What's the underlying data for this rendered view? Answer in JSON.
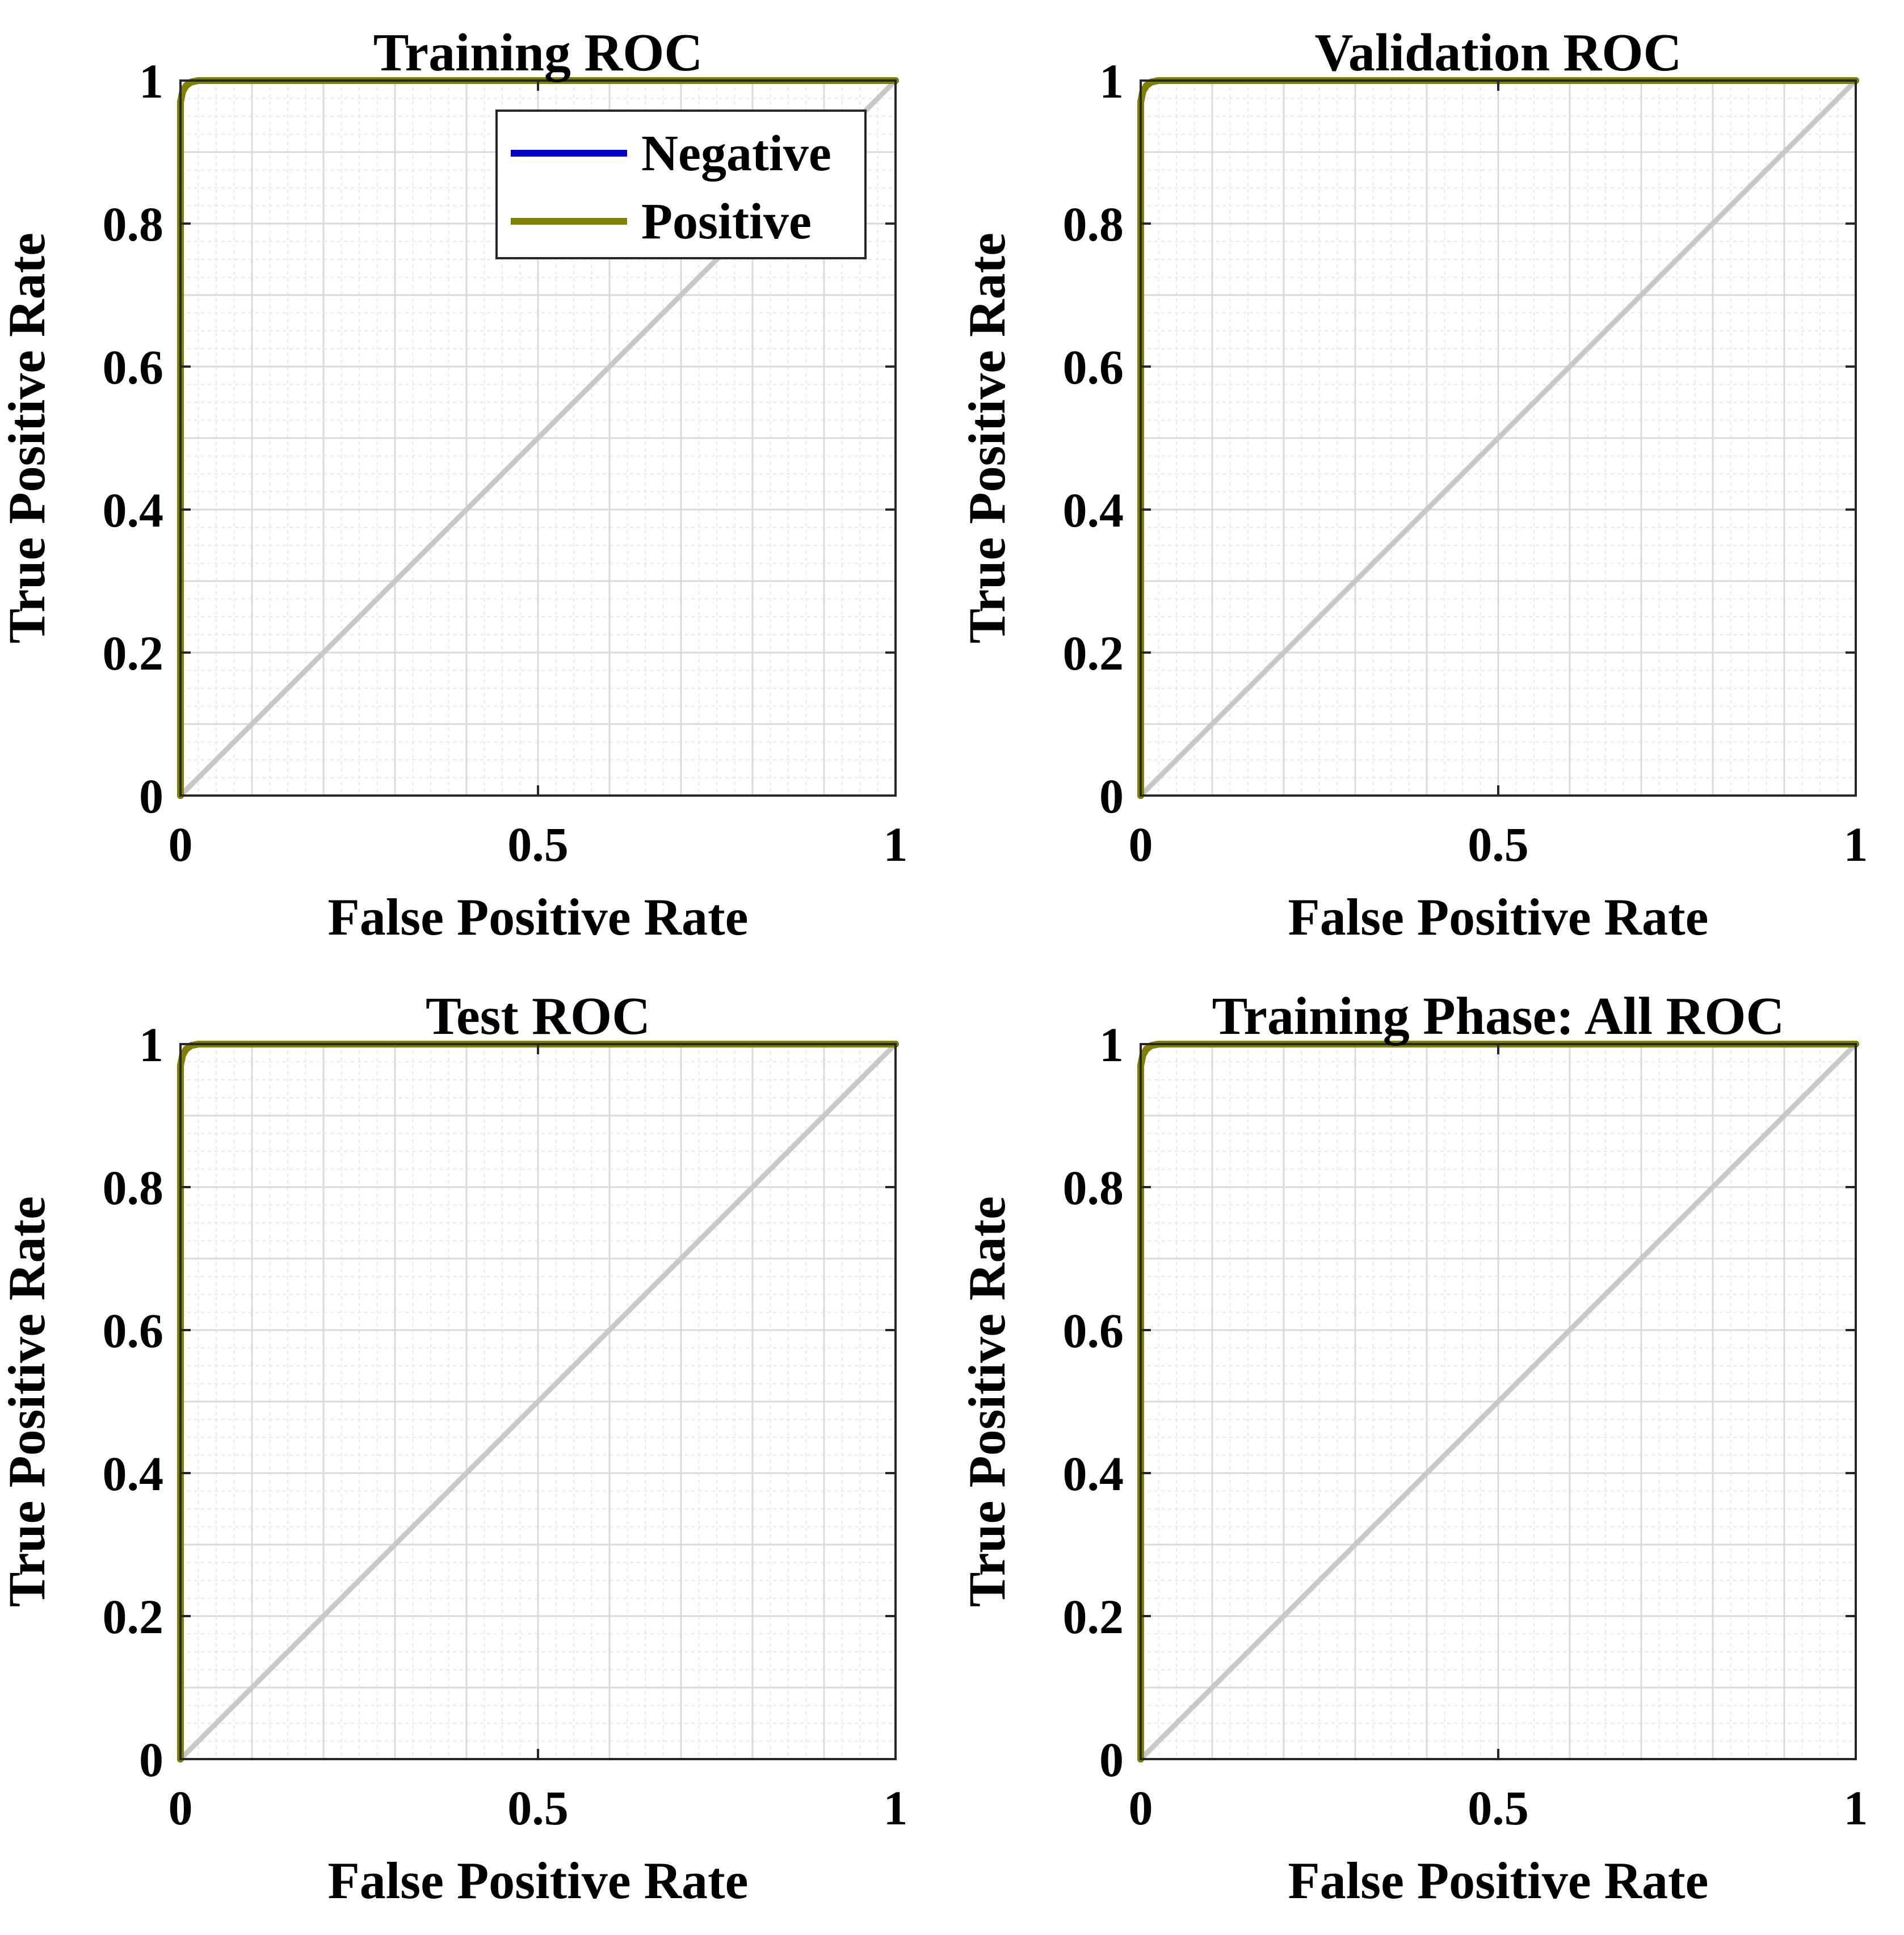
{
  "chart_data": [
    {
      "type": "line",
      "title": "Training ROC",
      "xlabel": "False Positive Rate",
      "ylabel": "True Positive Rate",
      "xlim": [
        0,
        1
      ],
      "ylim": [
        0,
        1
      ],
      "xticks": [
        "0",
        "0.5",
        "1"
      ],
      "yticks": [
        "0",
        "0.2",
        "0.4",
        "0.6",
        "0.8",
        "1"
      ],
      "grid": true,
      "legend": {
        "position": "top-right",
        "entries": [
          "Negative",
          "Positive"
        ]
      },
      "series": [
        {
          "name": "Negative",
          "color": "#0000c8",
          "x": [
            0,
            0,
            0.003,
            0.008,
            0.015,
            0.025,
            1
          ],
          "y": [
            0,
            0.97,
            0.985,
            0.993,
            0.998,
            1,
            1
          ]
        },
        {
          "name": "Positive",
          "color": "#7f7f00",
          "x": [
            0,
            0,
            0.003,
            0.008,
            0.015,
            0.025,
            1
          ],
          "y": [
            0,
            0.97,
            0.985,
            0.993,
            0.998,
            1,
            1
          ]
        },
        {
          "name": "Chance",
          "color": "#c8c8c8",
          "x": [
            0,
            1
          ],
          "y": [
            0,
            1
          ]
        }
      ]
    },
    {
      "type": "line",
      "title": "Validation ROC",
      "xlabel": "False Positive Rate",
      "ylabel": "True Positive Rate",
      "xlim": [
        0,
        1
      ],
      "ylim": [
        0,
        1
      ],
      "xticks": [
        "0",
        "0.5",
        "1"
      ],
      "yticks": [
        "0",
        "0.2",
        "0.4",
        "0.6",
        "0.8",
        "1"
      ],
      "grid": true,
      "series": [
        {
          "name": "Negative",
          "color": "#0000c8",
          "x": [
            0,
            0,
            0.003,
            0.008,
            0.015,
            0.025,
            1
          ],
          "y": [
            0,
            0.97,
            0.985,
            0.993,
            0.998,
            1,
            1
          ]
        },
        {
          "name": "Positive",
          "color": "#7f7f00",
          "x": [
            0,
            0,
            0.003,
            0.008,
            0.015,
            0.025,
            1
          ],
          "y": [
            0,
            0.97,
            0.985,
            0.993,
            0.998,
            1,
            1
          ]
        },
        {
          "name": "Chance",
          "color": "#c8c8c8",
          "x": [
            0,
            1
          ],
          "y": [
            0,
            1
          ]
        }
      ]
    },
    {
      "type": "line",
      "title": "Test ROC",
      "xlabel": "False Positive Rate",
      "ylabel": "True Positive Rate",
      "xlim": [
        0,
        1
      ],
      "ylim": [
        0,
        1
      ],
      "xticks": [
        "0",
        "0.5",
        "1"
      ],
      "yticks": [
        "0",
        "0.2",
        "0.4",
        "0.6",
        "0.8",
        "1"
      ],
      "grid": true,
      "series": [
        {
          "name": "Negative",
          "color": "#0000c8",
          "x": [
            0,
            0,
            0.003,
            0.008,
            0.015,
            0.025,
            1
          ],
          "y": [
            0,
            0.97,
            0.985,
            0.993,
            0.998,
            1,
            1
          ]
        },
        {
          "name": "Positive",
          "color": "#7f7f00",
          "x": [
            0,
            0,
            0.003,
            0.008,
            0.015,
            0.025,
            1
          ],
          "y": [
            0,
            0.97,
            0.985,
            0.993,
            0.998,
            1,
            1
          ]
        },
        {
          "name": "Chance",
          "color": "#c8c8c8",
          "x": [
            0,
            1
          ],
          "y": [
            0,
            1
          ]
        }
      ]
    },
    {
      "type": "line",
      "title": "Training Phase: All ROC",
      "xlabel": "False Positive Rate",
      "ylabel": "True Positive Rate",
      "xlim": [
        0,
        1
      ],
      "ylim": [
        0,
        1
      ],
      "xticks": [
        "0",
        "0.5",
        "1"
      ],
      "yticks": [
        "0",
        "0.2",
        "0.4",
        "0.6",
        "0.8",
        "1"
      ],
      "grid": true,
      "series": [
        {
          "name": "Negative",
          "color": "#0000c8",
          "x": [
            0,
            0,
            0.003,
            0.008,
            0.015,
            0.025,
            1
          ],
          "y": [
            0,
            0.97,
            0.985,
            0.993,
            0.998,
            1,
            1
          ]
        },
        {
          "name": "Positive",
          "color": "#7f7f00",
          "x": [
            0,
            0,
            0.003,
            0.008,
            0.015,
            0.025,
            1
          ],
          "y": [
            0,
            0.97,
            0.985,
            0.993,
            0.998,
            1,
            1
          ]
        },
        {
          "name": "Chance",
          "color": "#c8c8c8",
          "x": [
            0,
            1
          ],
          "y": [
            0,
            1
          ]
        }
      ]
    }
  ]
}
